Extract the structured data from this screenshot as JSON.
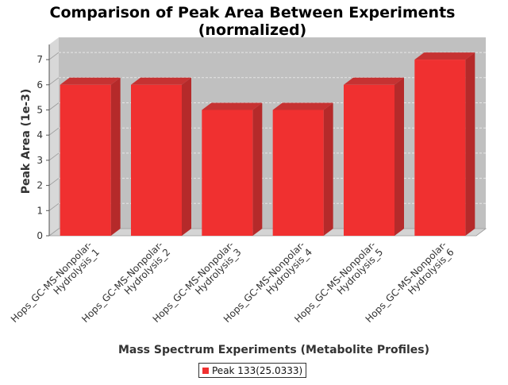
{
  "chart_data": {
    "type": "bar",
    "title": "Comparison of Peak Area Between Experiments",
    "subtitle": "(normalized)",
    "xlabel": "Mass Spectrum Experiments (Metabolite Profiles)",
    "ylabel": "Peak Area (1e-3)",
    "ylim": [
      0,
      7.6
    ],
    "yticks": [
      "0",
      "1",
      "2",
      "3",
      "4",
      "5",
      "6",
      "7"
    ],
    "categories": [
      "Hops_GC-MS-Nonpolar-Hydrolysis_1",
      "Hops_GC-MS-Nonpolar-Hydrolysis_2",
      "Hops_GC-MS-Nonpolar-Hydrolysis_3",
      "Hops_GC-MS-Nonpolar-Hydrolysis_4",
      "Hops_GC-MS-Nonpolar-Hydrolysis_5",
      "Hops_GC-MS-Nonpolar-Hydrolysis_6"
    ],
    "category_lines": [
      [
        "Hops_GC-MS-Nonpolar-",
        "Hydrolysis_1"
      ],
      [
        "Hops_GC-MS-Nonpolar-",
        "Hydrolysis_2"
      ],
      [
        "Hops_GC-MS-Nonpolar-",
        "Hydrolysis_3"
      ],
      [
        "Hops_GC-MS-Nonpolar-",
        "Hydrolysis_4"
      ],
      [
        "Hops_GC-MS-Nonpolar-",
        "Hydrolysis_5"
      ],
      [
        "Hops_GC-MS-Nonpolar-",
        "Hydrolysis_6"
      ]
    ],
    "series": [
      {
        "name": "Peak 133(25.0333)",
        "values": [
          6,
          6,
          5,
          5,
          6,
          7
        ]
      }
    ],
    "grid": true,
    "legend_position": "bottom-center",
    "colors": {
      "bar_front": "#f03030",
      "bar_side": "#b52a2a",
      "bar_top": "#c63232",
      "plot_back": "#c0c0c0",
      "plot_floor": "#d4d4d4",
      "grid": "#e6e6e6"
    }
  }
}
